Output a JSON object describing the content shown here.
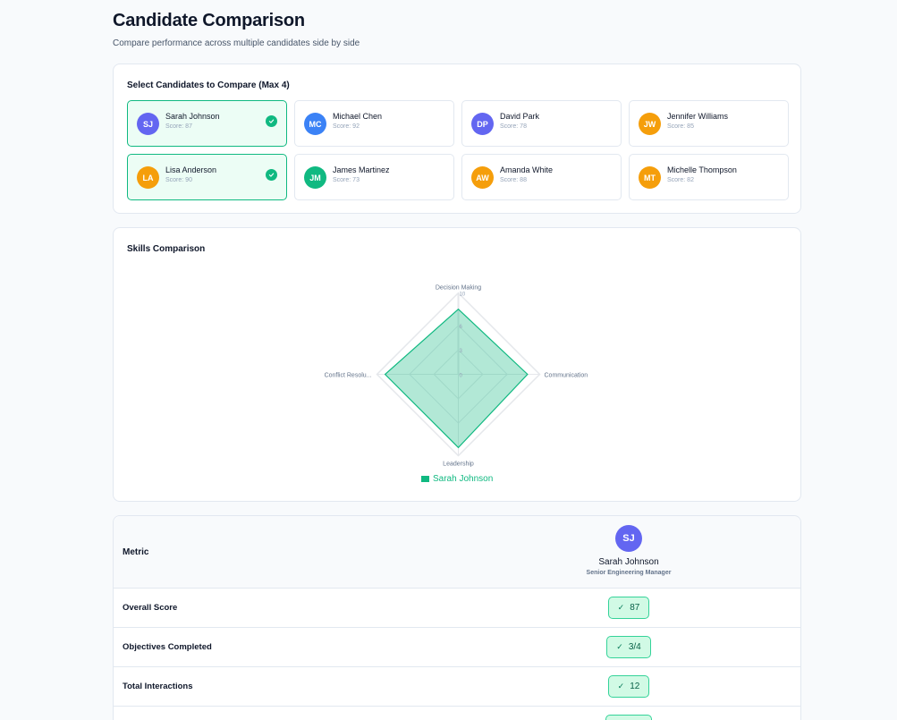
{
  "header": {
    "title": "Candidate Comparison",
    "subtitle": "Compare performance across multiple candidates side by side"
  },
  "selector": {
    "heading": "Select Candidates to Compare (Max 4)",
    "candidates": [
      {
        "initials": "SJ",
        "name": "Sarah Johnson",
        "score": "Score: 87",
        "color": "#6366f1",
        "selected": true
      },
      {
        "initials": "MC",
        "name": "Michael Chen",
        "score": "Score: 92",
        "color": "#3b82f6",
        "selected": false
      },
      {
        "initials": "DP",
        "name": "David Park",
        "score": "Score: 78",
        "color": "#6366f1",
        "selected": false
      },
      {
        "initials": "JW",
        "name": "Jennifer Williams",
        "score": "Score: 85",
        "color": "#f59e0b",
        "selected": false
      },
      {
        "initials": "LA",
        "name": "Lisa Anderson",
        "score": "Score: 90",
        "color": "#f59e0b",
        "selected": true
      },
      {
        "initials": "JM",
        "name": "James Martinez",
        "score": "Score: 73",
        "color": "#10b981",
        "selected": false
      },
      {
        "initials": "AW",
        "name": "Amanda White",
        "score": "Score: 88",
        "color": "#f59e0b",
        "selected": false
      },
      {
        "initials": "MT",
        "name": "Michelle Thompson",
        "score": "Score: 82",
        "color": "#f59e0b",
        "selected": false
      }
    ]
  },
  "skills": {
    "heading": "Skills Comparison",
    "legend_label": "Sarah Johnson"
  },
  "chart_data": {
    "type": "radar",
    "title": "Skills Comparison",
    "axes": [
      "Decision Making",
      "Communication",
      "Leadership",
      "Conflict Resolu..."
    ],
    "axes_full": [
      "Decision Making",
      "Communication",
      "Leadership",
      "Conflict Resolution"
    ],
    "radial_ticks": [
      "0",
      "3",
      "6",
      "10"
    ],
    "range": [
      0,
      10
    ],
    "series": [
      {
        "name": "Sarah Johnson",
        "color": "#10b981",
        "values": [
          8,
          8.5,
          9,
          9
        ]
      }
    ],
    "legend_position": "bottom"
  },
  "comparison_table": {
    "metric_header": "Metric",
    "candidate": {
      "initials": "SJ",
      "name": "Sarah Johnson",
      "role": "Senior Engineering Manager"
    },
    "rows": [
      {
        "metric": "Overall Score",
        "value": "87"
      },
      {
        "metric": "Objectives Completed",
        "value": "3/4"
      },
      {
        "metric": "Total Interactions",
        "value": "12"
      },
      {
        "metric": "",
        "value": ""
      }
    ]
  }
}
